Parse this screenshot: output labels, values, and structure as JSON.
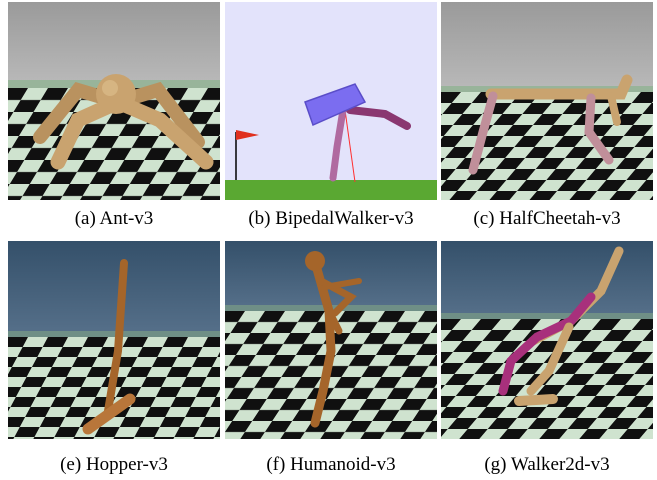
{
  "figure": {
    "panels": [
      {
        "id": "a",
        "caption": "(a)  Ant-v3",
        "scene": "ant-robot"
      },
      {
        "id": "b",
        "caption": "(b)  BipedalWalker-v3",
        "scene": "bipedal-walker"
      },
      {
        "id": "c",
        "caption": "(c)  HalfCheetah-v3",
        "scene": "half-cheetah-robot"
      },
      {
        "id": "e",
        "caption": "(e)  Hopper-v3",
        "scene": "hopper-robot"
      },
      {
        "id": "f",
        "caption": "(f)  Humanoid-v3",
        "scene": "humanoid-robot"
      },
      {
        "id": "g",
        "caption": "(g)  Walker2d-v3",
        "scene": "walker2d-robot"
      }
    ]
  },
  "colors": {
    "gray_sky": "#a8a8a8",
    "blue_sky": "#3e5a73",
    "floor_light": "#cfe3cf",
    "floor_dark": "#101010",
    "robot_tan": "#c9a36f",
    "robot_brown": "#a5652a",
    "walker_purple": "#7b6df0",
    "walker_magenta": "#a8307c",
    "bipedal_bg": "#e3e3fb",
    "bipedal_ground": "#5aa832",
    "flag_red": "#e0301e"
  }
}
